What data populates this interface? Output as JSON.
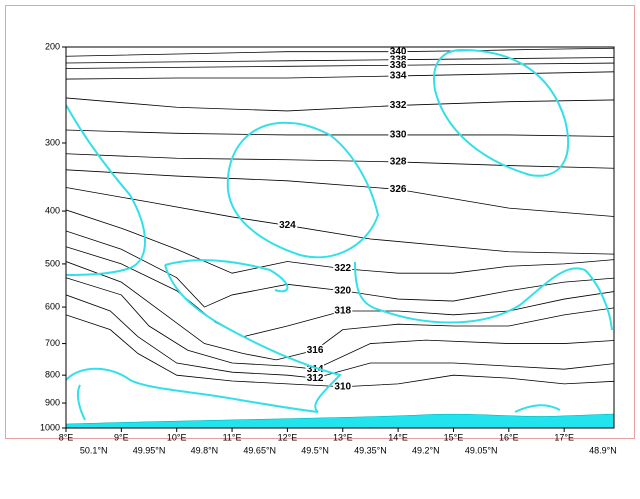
{
  "chart_data": {
    "type": "contour",
    "scale": "log",
    "line_color": "#000000",
    "xlim": [
      8,
      17.9
    ],
    "ylim": [
      1000,
      200
    ],
    "yticks": [
      200,
      300,
      400,
      500,
      600,
      700,
      800,
      900,
      1000
    ],
    "xticks": [
      {
        "value": 8,
        "label": "8°E"
      },
      {
        "value": 9,
        "label": "9°E"
      },
      {
        "value": 10,
        "label": "10°E"
      },
      {
        "value": 11,
        "label": "11°E"
      },
      {
        "value": 12,
        "label": "12°E"
      },
      {
        "value": 13,
        "label": "13°E"
      },
      {
        "value": 14,
        "label": "14°E"
      },
      {
        "value": 15,
        "label": "15°E"
      },
      {
        "value": 16,
        "label": "16°E"
      },
      {
        "value": 17,
        "label": "17°E"
      }
    ],
    "x2ticks": [
      {
        "value": 8.5,
        "label": "50.1°N"
      },
      {
        "value": 9.5,
        "label": "49.95°N"
      },
      {
        "value": 10.5,
        "label": "49.8°N"
      },
      {
        "value": 11.5,
        "label": "49.65°N"
      },
      {
        "value": 12.5,
        "label": "49.5°N"
      },
      {
        "value": 13.5,
        "label": "49.35°N"
      },
      {
        "value": 14.5,
        "label": "49.2°N"
      },
      {
        "value": 15.5,
        "label": "49.05°N"
      },
      {
        "value": 17.7,
        "label": "48.9°N"
      }
    ],
    "contours": [
      {
        "level": 340,
        "lon": [
          8,
          10,
          12,
          14,
          15.5,
          16.5,
          18
        ],
        "p": [
          208,
          206,
          204,
          204,
          203,
          202,
          201
        ]
      },
      {
        "level": 338,
        "lon": [
          8,
          10,
          12,
          14,
          16,
          18
        ],
        "p": [
          214,
          213,
          212,
          211,
          210,
          209
        ]
      },
      {
        "level": 336,
        "lon": [
          8,
          10,
          12,
          14,
          16,
          18
        ],
        "p": [
          219,
          218,
          217,
          216,
          215,
          214
        ]
      },
      {
        "level": 334,
        "lon": [
          8,
          10,
          12,
          14,
          16,
          18
        ],
        "p": [
          229,
          228,
          228,
          226,
          224,
          222
        ]
      },
      {
        "level": 332,
        "lon": [
          8,
          10,
          12,
          14,
          16,
          18
        ],
        "p": [
          248,
          258,
          262,
          256,
          252,
          250
        ]
      },
      {
        "level": 330,
        "lon": [
          8,
          10,
          12,
          14,
          16,
          18
        ],
        "p": [
          284,
          288,
          290,
          290,
          290,
          292
        ]
      },
      {
        "level": 328,
        "lon": [
          8,
          10,
          12,
          14,
          16,
          18
        ],
        "p": [
          314,
          320,
          322,
          325,
          330,
          334
        ]
      },
      {
        "level": 326,
        "lon": [
          8,
          10,
          12,
          14,
          16,
          18
        ],
        "p": [
          336,
          345,
          352,
          365,
          395,
          410
        ]
      },
      {
        "level": 324,
        "lon": [
          8,
          9.5,
          11,
          12,
          13.5,
          16,
          18
        ],
        "p": [
          362,
          385,
          410,
          425,
          450,
          475,
          480
        ]
      },
      {
        "level": 322,
        "lon": [
          8,
          9,
          10,
          11,
          12,
          13,
          14,
          15,
          16,
          17,
          18
        ],
        "p": [
          398,
          430,
          470,
          520,
          495,
          510,
          520,
          520,
          505,
          500,
          490
        ]
      },
      {
        "level": 320,
        "lon": [
          8,
          9,
          10,
          10.5,
          11,
          12,
          13,
          14,
          15,
          16,
          17,
          18
        ],
        "p": [
          435,
          470,
          530,
          600,
          570,
          545,
          560,
          580,
          585,
          560,
          540,
          530
        ]
      },
      {
        "level": 318,
        "lon": [
          8,
          9,
          10,
          10.7,
          11.2,
          12,
          13,
          14,
          15,
          16,
          17,
          18
        ],
        "p": [
          465,
          500,
          560,
          640,
          680,
          650,
          610,
          610,
          620,
          610,
          580,
          560
        ]
      },
      {
        "level": 316,
        "lon": [
          8,
          9,
          9.8,
          10.5,
          11.2,
          11.8,
          12.5,
          13,
          14,
          15,
          16,
          17,
          18
        ],
        "p": [
          495,
          540,
          620,
          700,
          730,
          750,
          720,
          660,
          645,
          650,
          650,
          620,
          600
        ]
      },
      {
        "level": 314,
        "lon": [
          8,
          9,
          9.5,
          10.2,
          11,
          12,
          12.5,
          13.5,
          14.5,
          16,
          17,
          18
        ],
        "p": [
          530,
          570,
          650,
          720,
          760,
          770,
          780,
          700,
          690,
          700,
          700,
          690
        ]
      },
      {
        "level": 312,
        "lon": [
          8,
          8.8,
          9.3,
          10,
          11,
          12,
          12.5,
          13.5,
          15,
          16,
          17,
          18
        ],
        "p": [
          570,
          610,
          680,
          760,
          790,
          800,
          810,
          760,
          760,
          770,
          780,
          760
        ]
      },
      {
        "level": 310,
        "lon": [
          8,
          8.8,
          9.3,
          10,
          11,
          12,
          13,
          14,
          15,
          16,
          17,
          18
        ],
        "p": [
          620,
          660,
          730,
          800,
          820,
          830,
          840,
          830,
          800,
          810,
          830,
          820
        ]
      }
    ]
  }
}
